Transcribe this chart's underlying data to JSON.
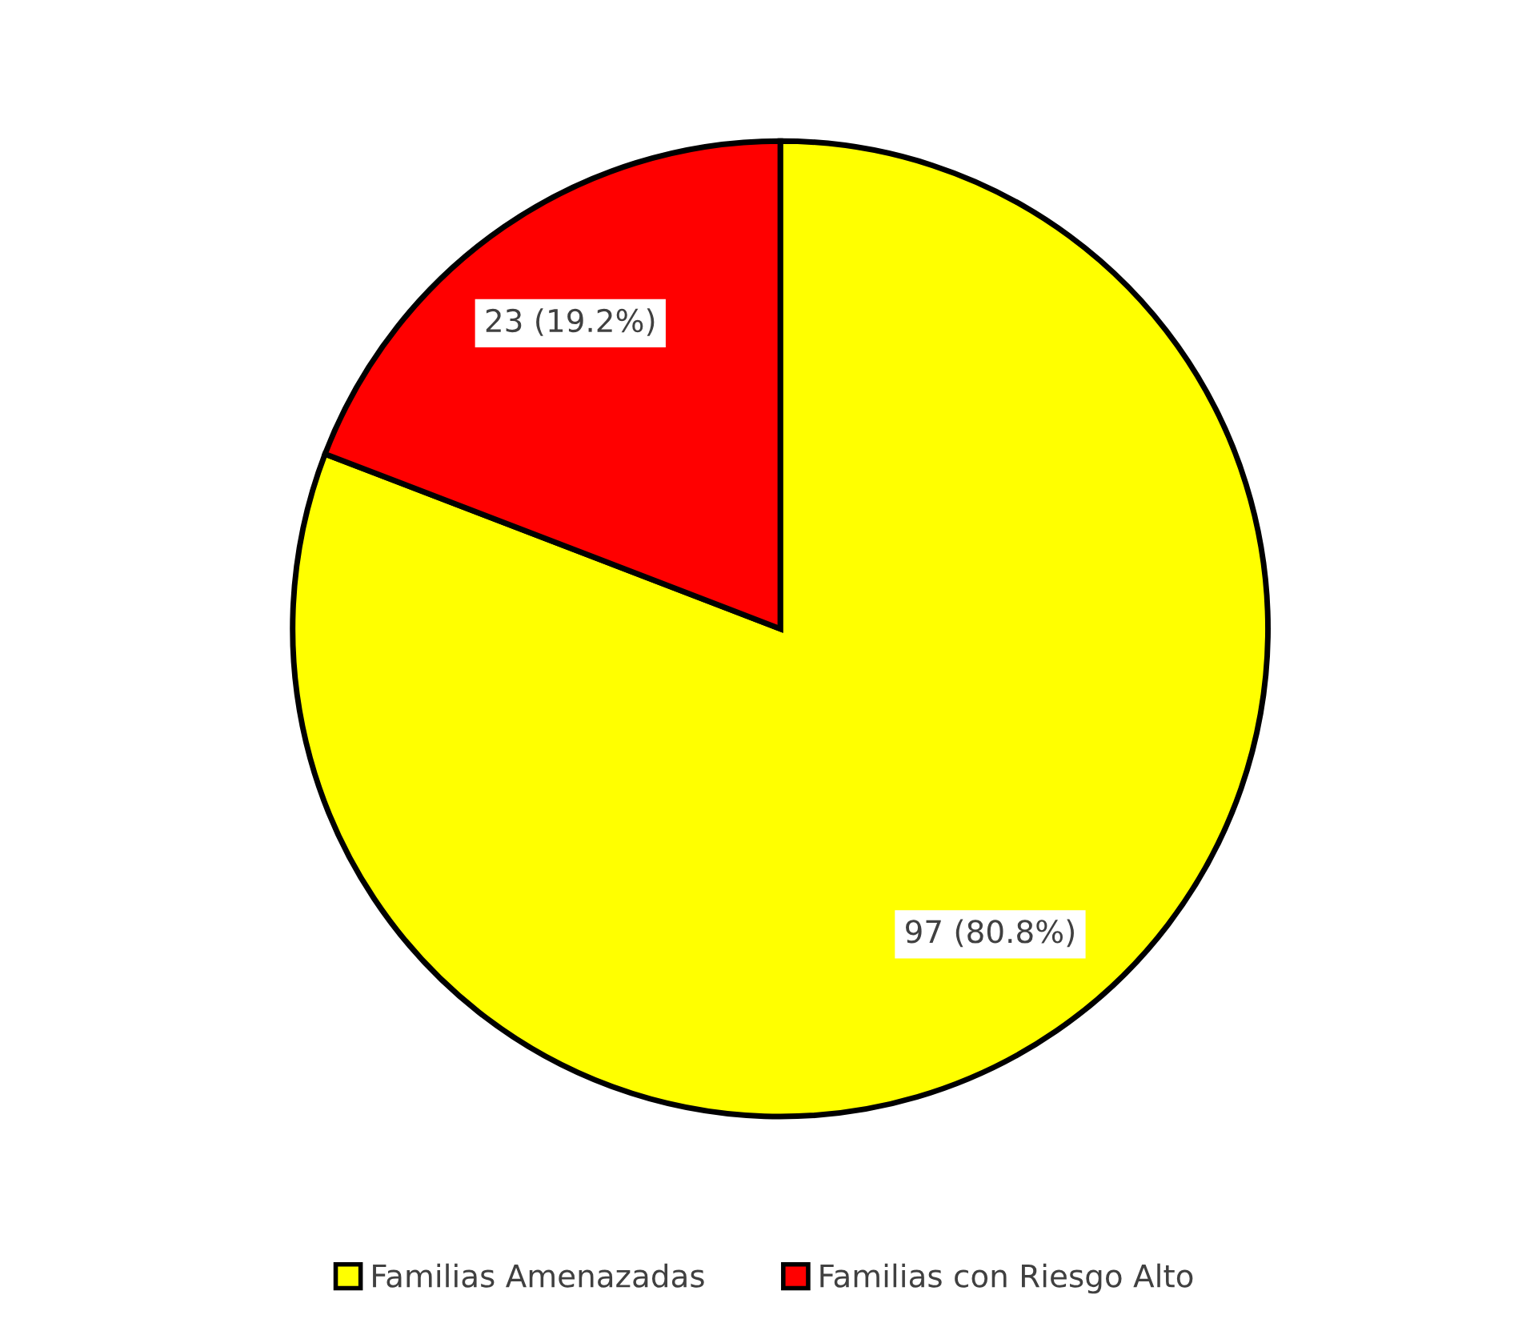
{
  "chart_data": {
    "type": "pie",
    "categories": [
      "Familias Amenazadas",
      "Familias con Riesgo Alto"
    ],
    "values": [
      97,
      23
    ],
    "colors": [
      "#ffff00",
      "#ff0000"
    ],
    "value_labels": [
      "97 (80.8%)",
      "23 (19.2%)"
    ],
    "legend": "bottom"
  }
}
